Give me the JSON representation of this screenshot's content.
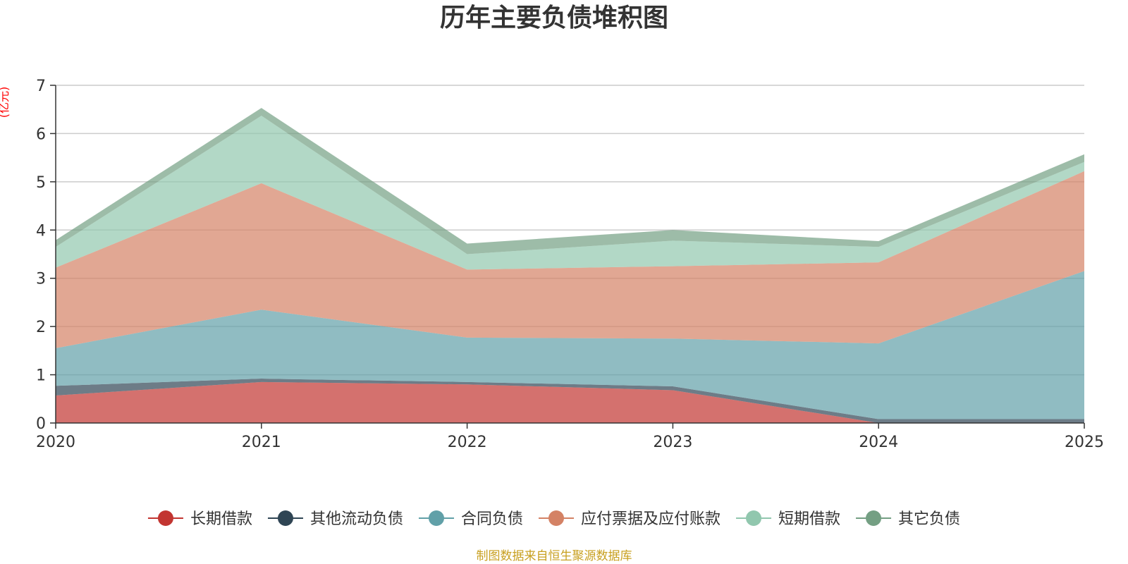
{
  "chart_data": {
    "type": "area",
    "stacked": true,
    "title": "历年主要负债堆积图",
    "ylabel": "(亿元)",
    "xlabel": "",
    "categories": [
      "2020",
      "2021",
      "2022",
      "2023",
      "2024",
      "2025"
    ],
    "ylim": [
      0,
      7
    ],
    "yticks": [
      0,
      1,
      2,
      3,
      4,
      5,
      6,
      7
    ],
    "grid": true,
    "legend_position": "bottom-center",
    "series": [
      {
        "name": "长期借款",
        "color": "#c23531",
        "values": [
          0.57,
          0.85,
          0.8,
          0.68,
          0.0,
          0.0
        ]
      },
      {
        "name": "其他流动负债",
        "color": "#2f4554",
        "values": [
          0.2,
          0.07,
          0.05,
          0.08,
          0.08,
          0.08
        ]
      },
      {
        "name": "合同负债",
        "color": "#61a0a8",
        "values": [
          0.78,
          1.43,
          0.92,
          0.99,
          1.57,
          3.07
        ]
      },
      {
        "name": "应付票据及应付账款",
        "color": "#d48265",
        "values": [
          1.67,
          2.62,
          1.41,
          1.5,
          1.68,
          2.07
        ]
      },
      {
        "name": "短期借款",
        "color": "#91c7ae",
        "values": [
          0.43,
          1.4,
          0.32,
          0.53,
          0.32,
          0.19
        ]
      },
      {
        "name": "其它负债",
        "color": "#749f83",
        "values": [
          0.14,
          0.16,
          0.22,
          0.22,
          0.12,
          0.16
        ]
      }
    ],
    "source_note": "制图数据来自恒生聚源数据库",
    "colors": {
      "text": "#333333",
      "grid": "#cccccc",
      "unit": "#ff0000",
      "source": "#c8a020",
      "axis": "#333333"
    }
  }
}
